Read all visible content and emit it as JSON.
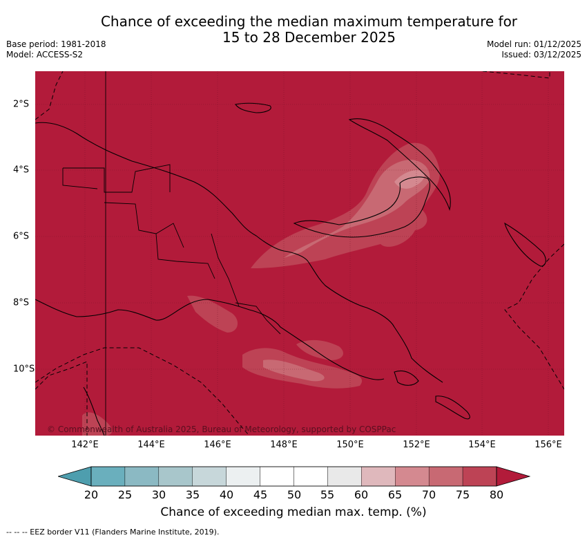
{
  "header": {
    "title_line1": "Chance of exceeding the median maximum temperature for",
    "title_line2": "15 to 28 December 2025",
    "base_period": "Base period: 1981-2018",
    "model": "Model: ACCESS-S2",
    "model_run": "Model run: 01/12/2025",
    "issued": "Issued: 03/12/2025"
  },
  "map": {
    "copyright": "© Commonwealth of Australia 2025, Bureau of Meteorology, supported by COSPPac",
    "lon_ticks": [
      "142°E",
      "144°E",
      "146°E",
      "148°E",
      "150°E",
      "152°E",
      "154°E",
      "156°E"
    ],
    "lat_ticks": [
      "2°S",
      "4°S",
      "6°S",
      "8°S",
      "10°S"
    ],
    "lon_range": [
      140.5,
      156.5
    ],
    "lat_range": [
      -12,
      -1
    ],
    "background_chance_percent": 80
  },
  "colorbar": {
    "ticks": [
      "20",
      "25",
      "30",
      "35",
      "40",
      "45",
      "50",
      "55",
      "60",
      "65",
      "70",
      "75",
      "80"
    ],
    "colors": [
      "#6aafbd",
      "#8bb9c3",
      "#a8c6cb",
      "#c7d7da",
      "#ecf0f1",
      "#ffffff",
      "#ffffff",
      "#e9e9e9",
      "#dfb8bc",
      "#d48990",
      "#c86973",
      "#bd4355"
    ],
    "under_color": "#4e9eae",
    "over_color": "#b21b3a",
    "label": "Chance of exceeding median max. temp. (%)"
  },
  "legend": {
    "text": "--  --  -- EEZ border V11 (Flanders Marine Institute, 2019)."
  }
}
